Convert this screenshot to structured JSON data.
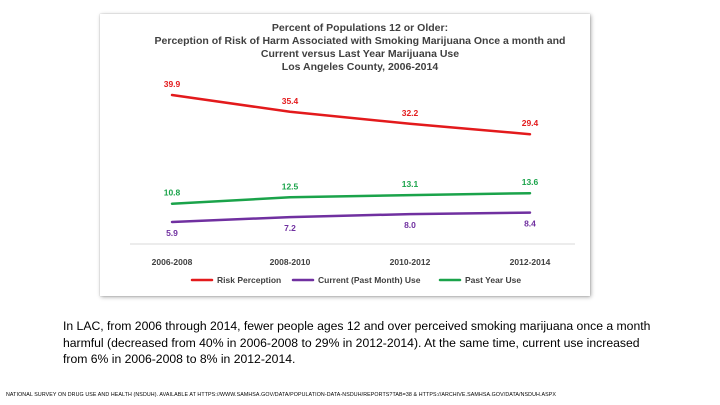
{
  "chart_data": {
    "type": "line",
    "title_lines": [
      "Percent of Populations 12 or Older:",
      "Perception of Risk of Harm Associated with Smoking Marijuana Once a month and",
      "Current versus Last Year Marijuana Use",
      "Los Angeles County, 2006-2014"
    ],
    "categories": [
      "2006-2008",
      "2008-2010",
      "2010-2012",
      "2012-2014"
    ],
    "ylim": [
      0,
      45
    ],
    "grid": false,
    "legend_position": "bottom",
    "series": [
      {
        "name": "Risk Perception",
        "values": [
          39.9,
          35.4,
          32.2,
          29.4
        ],
        "labels": [
          "39.9",
          "35.4",
          "32.2",
          "29.4"
        ],
        "color": "#e31a1c",
        "label_side": "above"
      },
      {
        "name": "Current (Past Month) Use",
        "values": [
          5.9,
          7.2,
          8.0,
          8.4
        ],
        "labels": [
          "5.9",
          "7.2",
          "8.0",
          "8.4"
        ],
        "color": "#7030a0",
        "label_side": "below"
      },
      {
        "name": "Past Year Use",
        "values": [
          10.8,
          12.5,
          13.1,
          13.6
        ],
        "labels": [
          "10.8",
          "12.5",
          "13.1",
          "13.6"
        ],
        "color": "#1aa34a",
        "label_side": "above"
      }
    ]
  },
  "caption": "In LAC, from 2006 through 2014, fewer people ages 12 and over perceived smoking marijuana once a month harmful (decreased from 40% in 2006-2008 to 29% in 2012-2014). At the same time, current use increased from 6% in 2006-2008 to 8% in 2012-2014.",
  "footnote": "NATIONAL SURVEY ON DRUG USE AND HEALTH (NSDUH).  AVAILABLE AT HTTPS://WWW.SAMHSA.GOV/DATA/POPULATION-DATA-NSDUH/REPORTS?TAB=38  & HTTPS://ARCHIVE.SAMHSA.GOV/DATA/NSDUH.ASPX"
}
